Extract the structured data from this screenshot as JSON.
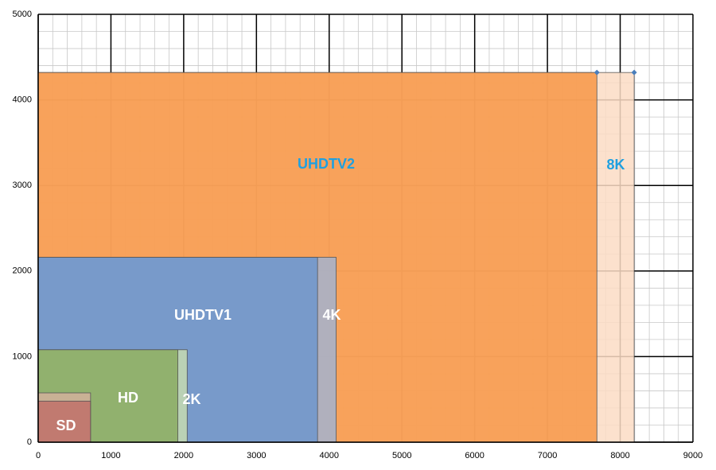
{
  "chart_data": {
    "type": "rect-area",
    "xlim": [
      0,
      9000
    ],
    "xticks": [
      0,
      1000,
      2000,
      3000,
      4000,
      5000,
      6000,
      7000,
      8000,
      9000
    ],
    "ylim": [
      0,
      5000
    ],
    "yticks": [
      0,
      1000,
      2000,
      3000,
      4000,
      5000
    ],
    "grid": true,
    "series": [
      {
        "name": "8K",
        "width": 8192,
        "height": 4320,
        "color": "#fbdcc4",
        "label_color": "#1fa0e0",
        "marker": true
      },
      {
        "name": "UHDTV2",
        "width": 7680,
        "height": 4320,
        "color": "#f79646",
        "label_color": "#1fa0e0",
        "marker": true
      },
      {
        "name": "4K",
        "width": 4096,
        "height": 2160,
        "color": "#a3b3cf",
        "label_color": "#ffffff",
        "marker": false
      },
      {
        "name": "UHDTV1",
        "width": 3840,
        "height": 2160,
        "color": "#6e97cd",
        "label_color": "#ffffff",
        "marker": false
      },
      {
        "name": "2K",
        "width": 2048,
        "height": 1080,
        "color": "#c6dbb2",
        "label_color": "#ffffff",
        "marker": false
      },
      {
        "name": "HD",
        "width": 1920,
        "height": 1080,
        "color": "#8aab62",
        "label_color": "#ffffff",
        "marker": false
      },
      {
        "name": null,
        "width": 720,
        "height": 576,
        "color": "#d2b29c",
        "label_color": "#ffffff",
        "marker": false
      },
      {
        "name": "SD",
        "width": 720,
        "height": 480,
        "color": "#c0716a",
        "label_color": "#ffffff",
        "marker": false
      }
    ]
  }
}
